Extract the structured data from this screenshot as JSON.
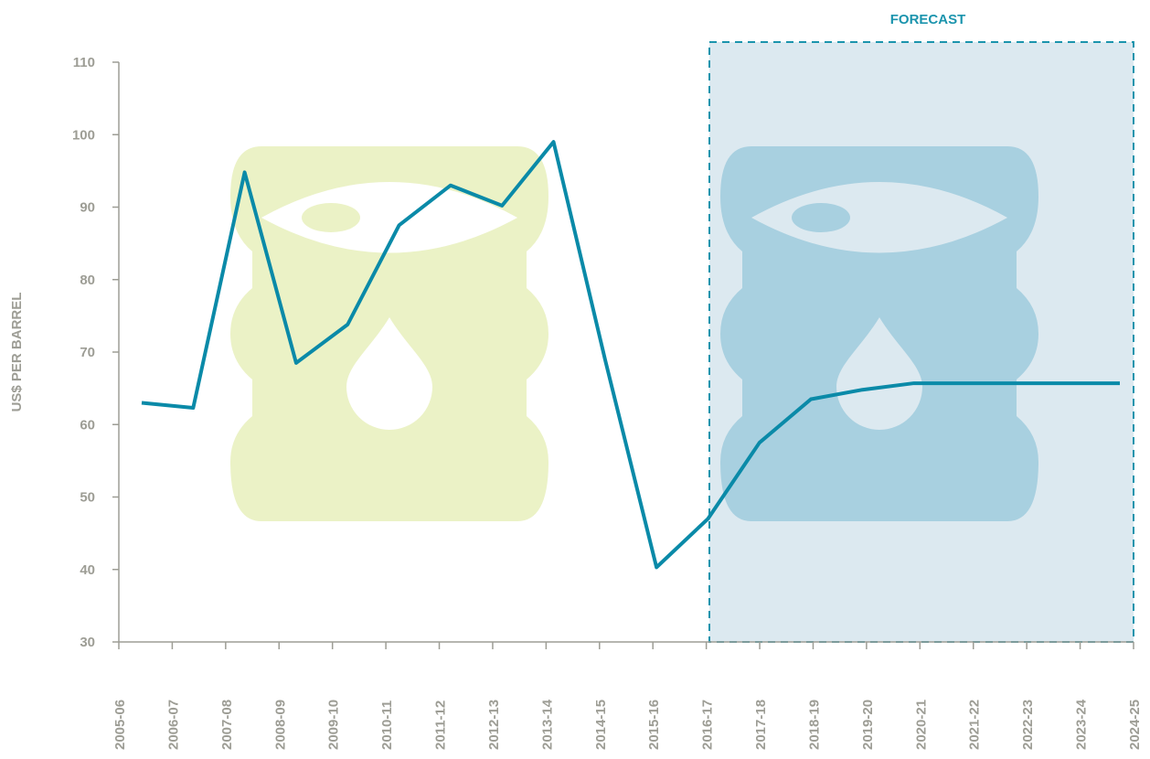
{
  "chart_data": {
    "type": "line",
    "y_label": "US$ PER BARREL",
    "forecast_label": "FORECAST",
    "categories": [
      "2005-06",
      "2006-07",
      "2007-08",
      "2008-09",
      "2009-10",
      "2010-11",
      "2011-12",
      "2012-13",
      "2013-14",
      "2014-15",
      "2015-16",
      "2016-17",
      "2017-18",
      "2018-19",
      "2019-20",
      "2020-21",
      "2021-22",
      "2022-23",
      "2023-24",
      "2024-25"
    ],
    "values": [
      63,
      62.3,
      94.8,
      68.5,
      73.8,
      87.5,
      93,
      90.2,
      99,
      69,
      40.3,
      47,
      57.5,
      63.5,
      64.8,
      65.7,
      65.7,
      65.7,
      65.7,
      65.7
    ],
    "color": "#0a8aa8",
    "ylim": [
      30,
      110
    ],
    "yticks": [
      30,
      40,
      50,
      60,
      70,
      80,
      90,
      100,
      110
    ]
  }
}
